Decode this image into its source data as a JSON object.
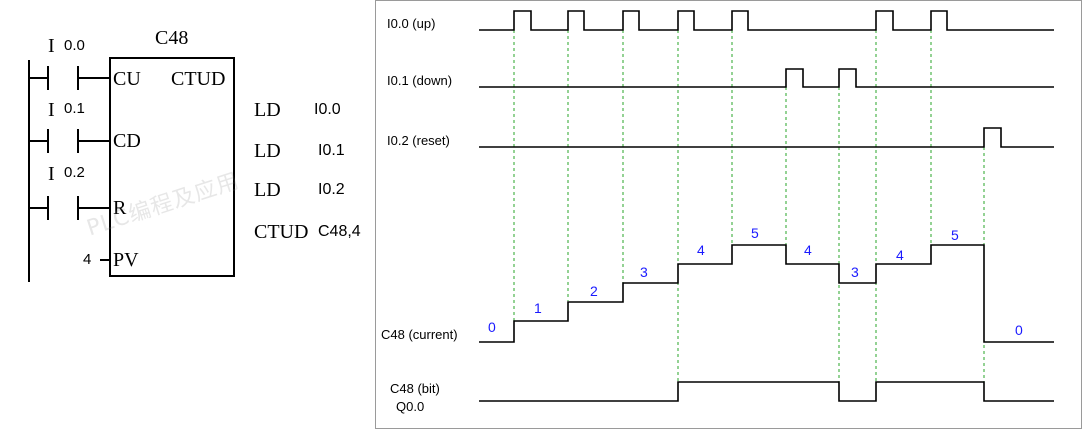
{
  "ladder": {
    "block_name": "C48",
    "inputs": [
      {
        "contact_prefix": "I",
        "contact_addr": "0.0",
        "pin": "CU"
      },
      {
        "contact_prefix": "I",
        "contact_addr": "0.1",
        "pin": "CD"
      },
      {
        "contact_prefix": "I",
        "contact_addr": "0.2",
        "pin": "R"
      }
    ],
    "block_type": "CTUD",
    "pv_value": "4",
    "pv_pin": "PV",
    "watermark": "PLC编程及应用"
  },
  "instructions": [
    {
      "op": "LD",
      "arg": "I0.0"
    },
    {
      "op": "LD",
      "arg": "I0.1"
    },
    {
      "op": "LD",
      "arg": "I0.2"
    },
    {
      "op": "CTUD",
      "arg": "C48,4"
    }
  ],
  "timing": {
    "signals": [
      {
        "label": "I0.0 (up)"
      },
      {
        "label": "I0.1 (down)"
      },
      {
        "label": "I0.2 (reset)"
      },
      {
        "label": "C48 (current)"
      },
      {
        "label_line1": "C48 (bit)",
        "label_line2": "Q0.0"
      }
    ],
    "counter_values": [
      "0",
      "1",
      "2",
      "3",
      "4",
      "5",
      "4",
      "3",
      "4",
      "5",
      "0"
    ],
    "value_color": "#1a1aff",
    "guide_color": "#2aa52a"
  }
}
